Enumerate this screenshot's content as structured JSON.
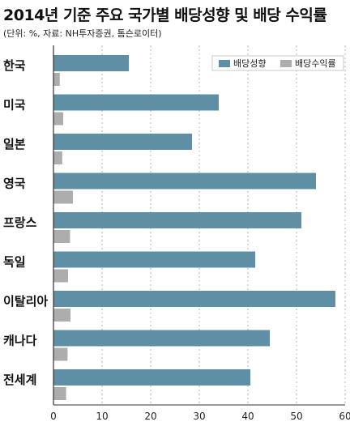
{
  "title": "2014년 기준 주요 국가별 배당성향 및 배당 수익률",
  "subtitle": "(단위: %, 자료: NH투자증권, 톰슨로이터)",
  "colors": {
    "series1": "#5f8fa4",
    "series2": "#adadad",
    "axis": "#333333",
    "grid": "#b5b5b5"
  },
  "chart_data": {
    "type": "bar",
    "orientation": "horizontal",
    "categories": [
      "한국",
      "미국",
      "일본",
      "영국",
      "프랑스",
      "독일",
      "이탈리아",
      "캐나다",
      "전세계"
    ],
    "series": [
      {
        "name": "배당성향",
        "values": [
          15.5,
          34,
          28.5,
          54,
          51,
          41.5,
          58,
          44.5,
          40.5
        ]
      },
      {
        "name": "배당수익률",
        "values": [
          1.3,
          2.0,
          1.8,
          4.0,
          3.4,
          3.0,
          3.5,
          2.9,
          2.6
        ]
      }
    ],
    "x_ticks": [
      "0",
      "10",
      "20",
      "30",
      "40",
      "50",
      "60"
    ],
    "xlim": [
      0,
      60
    ],
    "grid": true,
    "legend_position": "top-right"
  }
}
